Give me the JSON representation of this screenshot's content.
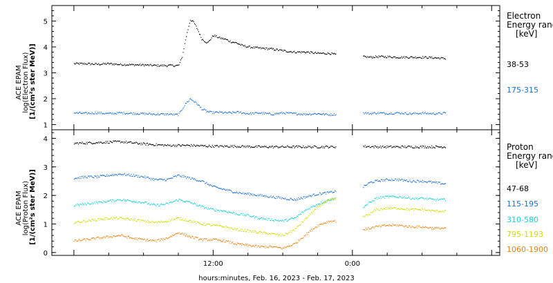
{
  "chart_data": [
    {
      "type": "scatter",
      "ylabel_lines": [
        "ACE EPAM",
        "log(Electron Flux)",
        "[1/(cm²s ster MeV)]"
      ],
      "ylim": [
        0.8,
        5.6
      ],
      "yticks": [
        1,
        2,
        3,
        4,
        5
      ],
      "legend_title_lines": [
        "Electron",
        "Energy range",
        "[keV]"
      ],
      "series": [
        {
          "name": "38-53",
          "color": "#000000",
          "t": [
            0,
            1,
            2,
            3,
            4,
            5,
            6,
            7,
            8,
            9,
            9.3,
            9.6,
            10,
            10.3,
            10.6,
            11,
            11.5,
            12,
            12.5,
            13,
            13.5,
            14,
            14.5,
            15,
            16,
            17,
            18,
            19,
            20,
            21,
            22,
            22.6,
            24.9,
            25.5,
            26,
            27,
            28,
            29,
            30,
            31,
            32
          ],
          "values": [
            3.35,
            3.35,
            3.33,
            3.35,
            3.32,
            3.31,
            3.3,
            3.28,
            3.28,
            3.28,
            3.6,
            4.3,
            5.05,
            4.95,
            4.7,
            4.3,
            4.15,
            4.45,
            4.35,
            4.3,
            4.2,
            4.15,
            4.05,
            4.0,
            3.95,
            3.92,
            3.85,
            3.8,
            3.8,
            3.75,
            3.75,
            3.7,
            3.62,
            3.6,
            3.62,
            3.62,
            3.6,
            3.6,
            3.6,
            3.58,
            3.55
          ]
        },
        {
          "name": "175-315",
          "color": "#1a6fd0",
          "t": [
            0,
            1,
            2,
            3,
            4,
            5,
            6,
            7,
            8,
            9,
            9.3,
            9.6,
            10,
            10.3,
            10.6,
            11,
            11.5,
            12,
            12.5,
            13,
            13.5,
            14,
            14.5,
            15,
            16,
            17,
            18,
            19,
            20,
            21,
            22,
            22.6,
            24.9,
            25.5,
            26,
            27,
            28,
            29,
            30,
            31,
            32
          ],
          "values": [
            1.45,
            1.43,
            1.45,
            1.42,
            1.45,
            1.43,
            1.42,
            1.4,
            1.4,
            1.38,
            1.6,
            1.8,
            2.0,
            1.9,
            1.8,
            1.6,
            1.5,
            1.45,
            1.48,
            1.45,
            1.45,
            1.48,
            1.45,
            1.42,
            1.45,
            1.4,
            1.45,
            1.42,
            1.4,
            1.42,
            1.38,
            1.4,
            1.45,
            1.42,
            1.45,
            1.43,
            1.45,
            1.42,
            1.44,
            1.42,
            1.44
          ]
        }
      ]
    },
    {
      "type": "scatter",
      "ylabel_lines": [
        "ACE EPAM",
        "log(Proton Flux)",
        "[1/(cm²s ster MeV)]"
      ],
      "ylim": [
        -0.1,
        4.3
      ],
      "yticks": [
        0,
        1,
        2,
        3,
        4
      ],
      "xticks": [
        {
          "t": 12,
          "label": "12:00"
        },
        {
          "t": 24,
          "label": "0:00"
        }
      ],
      "xlabel": "hours:minutes, Feb. 16, 2023 - Feb. 17, 2023",
      "legend_title_lines": [
        "Proton",
        "Energy range",
        "[keV]"
      ],
      "series": [
        {
          "name": "47-68",
          "color": "#000000",
          "t": [
            0,
            2,
            4,
            6,
            8,
            10,
            12,
            14,
            16,
            18,
            20,
            22,
            22.6,
            24.9,
            26,
            28,
            30,
            32
          ],
          "values": [
            3.82,
            3.85,
            3.88,
            3.8,
            3.75,
            3.75,
            3.72,
            3.72,
            3.7,
            3.7,
            3.7,
            3.7,
            3.7,
            3.72,
            3.7,
            3.7,
            3.7,
            3.7
          ]
        },
        {
          "name": "115-195",
          "color": "#1a6fd0",
          "t": [
            0,
            1,
            2,
            3,
            4,
            5,
            6,
            7,
            8,
            9,
            10,
            11,
            12,
            13,
            14,
            15,
            16,
            17,
            18,
            19,
            20,
            21,
            22,
            22.6,
            24.9,
            25.5,
            26,
            27,
            28,
            29,
            30,
            31,
            32
          ],
          "values": [
            2.6,
            2.65,
            2.65,
            2.7,
            2.75,
            2.7,
            2.65,
            2.55,
            2.55,
            2.7,
            2.6,
            2.5,
            2.3,
            2.2,
            2.1,
            2.05,
            2.0,
            1.95,
            1.9,
            1.85,
            1.95,
            2.05,
            2.1,
            2.15,
            2.3,
            2.45,
            2.5,
            2.55,
            2.55,
            2.5,
            2.5,
            2.45,
            2.4
          ]
        },
        {
          "name": "310-580",
          "color": "#18cfd8",
          "t": [
            0,
            1,
            2,
            3,
            4,
            5,
            6,
            7,
            8,
            9,
            10,
            11,
            12,
            13,
            14,
            15,
            16,
            17,
            18,
            19,
            20,
            21,
            22,
            22.6,
            24.9,
            25.5,
            26,
            27,
            28,
            29,
            30,
            31,
            32
          ],
          "values": [
            1.65,
            1.7,
            1.75,
            1.8,
            1.85,
            1.8,
            1.75,
            1.65,
            1.7,
            1.85,
            1.75,
            1.6,
            1.5,
            1.45,
            1.35,
            1.3,
            1.2,
            1.15,
            1.1,
            1.2,
            1.5,
            1.7,
            1.85,
            1.9,
            1.6,
            1.75,
            1.9,
            1.95,
            1.95,
            1.9,
            1.9,
            1.85,
            1.85
          ]
        },
        {
          "name": "795-1193",
          "color": "#cddc00",
          "t": [
            0,
            1,
            2,
            3,
            4,
            5,
            6,
            7,
            8,
            9,
            10,
            11,
            12,
            13,
            14,
            15,
            16,
            17,
            18,
            19,
            20,
            21,
            22,
            22.6,
            24.9,
            25.5,
            26,
            27,
            28,
            29,
            30,
            31,
            32
          ],
          "values": [
            1.05,
            1.1,
            1.15,
            1.2,
            1.2,
            1.15,
            1.1,
            1.05,
            1.1,
            1.2,
            1.1,
            1.0,
            0.95,
            0.9,
            0.8,
            0.75,
            0.7,
            0.65,
            0.6,
            0.8,
            1.2,
            1.6,
            1.85,
            1.85,
            1.25,
            1.35,
            1.5,
            1.55,
            1.55,
            1.5,
            1.5,
            1.45,
            1.45
          ]
        },
        {
          "name": "1060-1900",
          "color": "#e8820f",
          "t": [
            0,
            1,
            2,
            3,
            4,
            5,
            6,
            7,
            8,
            9,
            10,
            11,
            12,
            13,
            14,
            15,
            16,
            17,
            18,
            19,
            20,
            21,
            22,
            22.6,
            24.9,
            25.5,
            26,
            27,
            28,
            29,
            30,
            31,
            32
          ],
          "values": [
            0.4,
            0.45,
            0.5,
            0.55,
            0.6,
            0.5,
            0.45,
            0.4,
            0.5,
            0.7,
            0.55,
            0.45,
            0.45,
            0.4,
            0.3,
            0.25,
            0.2,
            0.2,
            0.15,
            0.3,
            0.65,
            0.95,
            1.1,
            1.1,
            0.8,
            0.85,
            0.9,
            0.95,
            0.95,
            0.9,
            0.9,
            0.85,
            0.85
          ]
        }
      ]
    }
  ]
}
